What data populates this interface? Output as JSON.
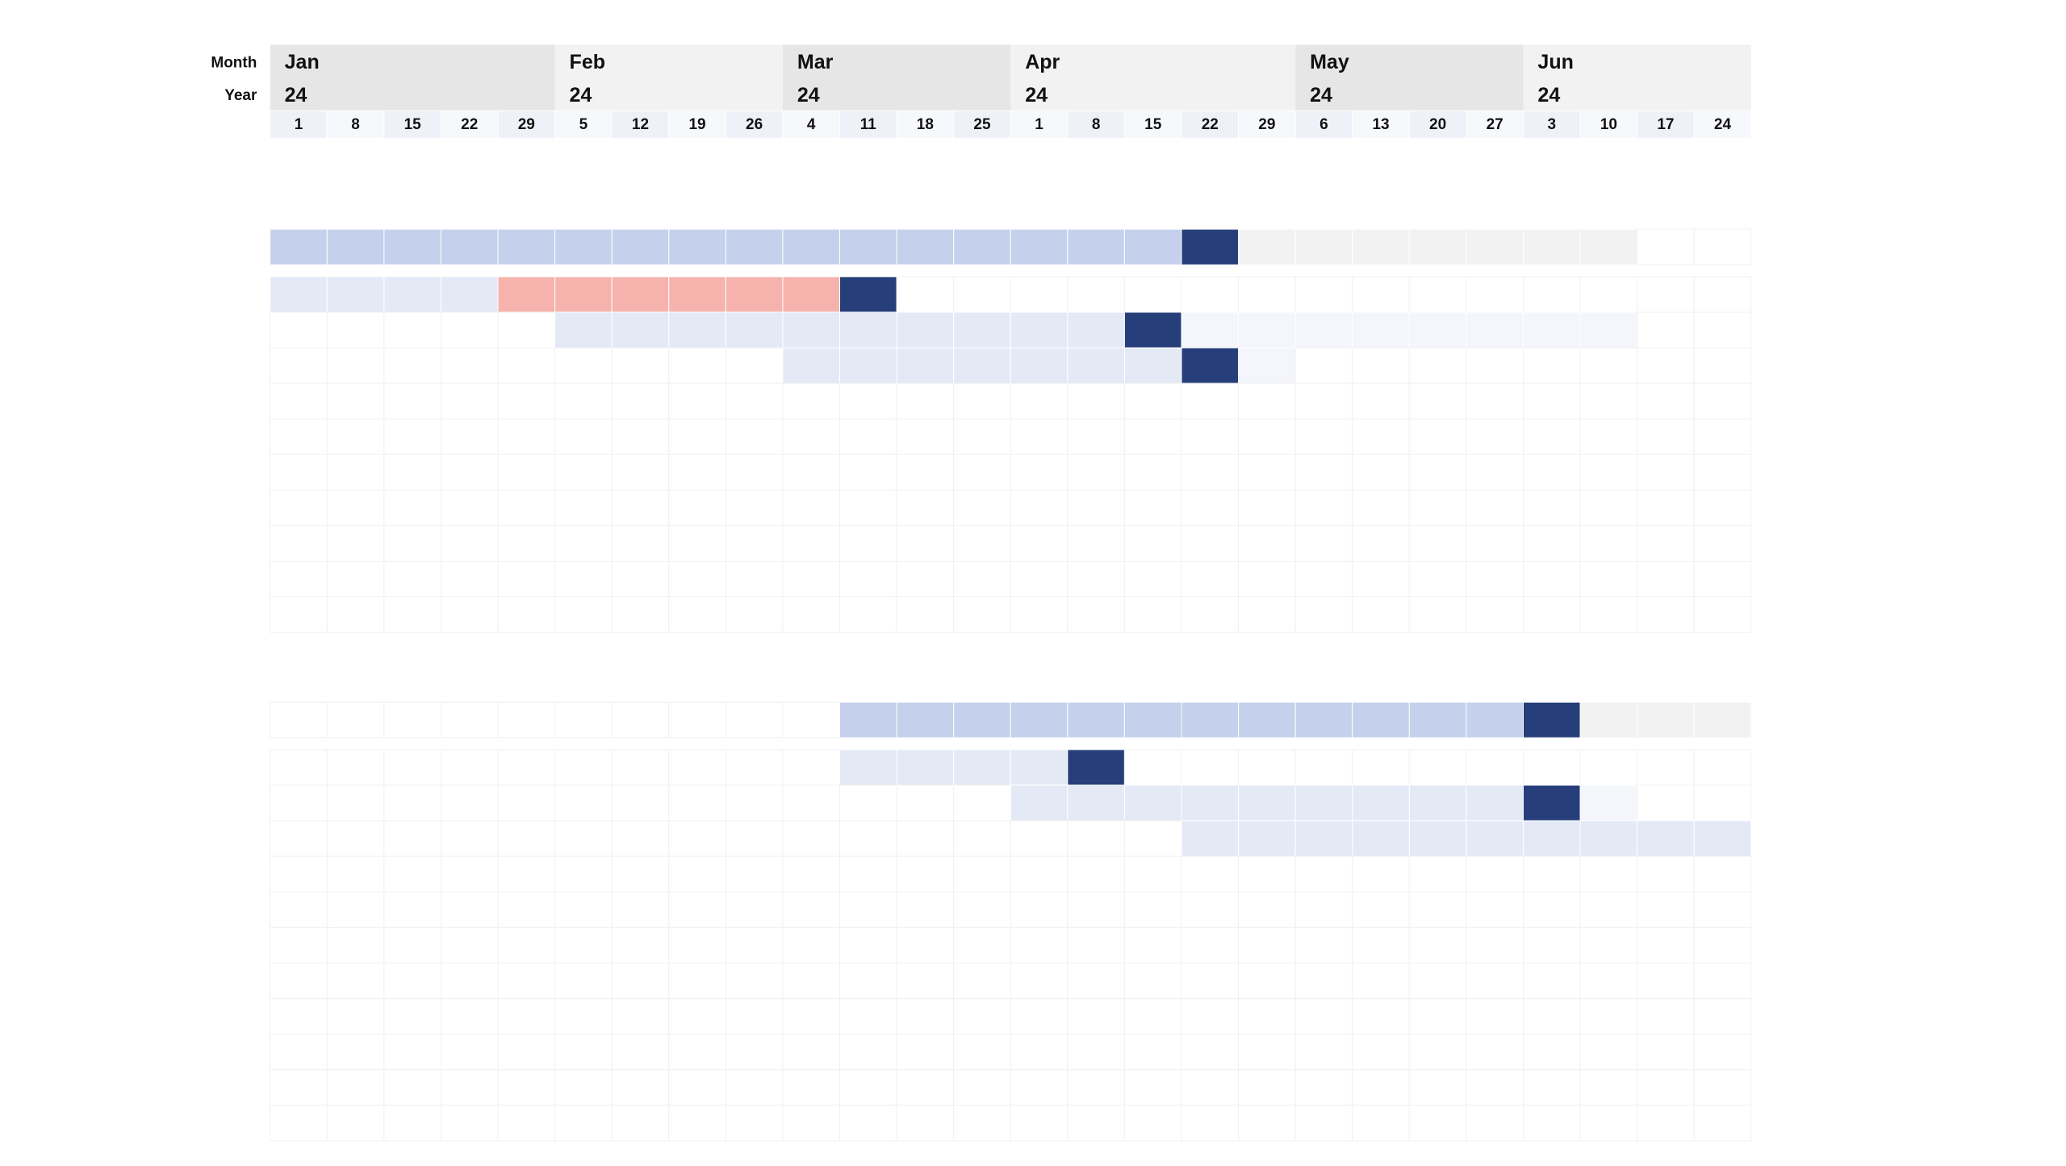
{
  "header": {
    "row_labels": [
      "Month",
      "Year"
    ],
    "months": [
      {
        "name": "Jan",
        "year": "24",
        "weeks": [
          1,
          8,
          15,
          22,
          29
        ]
      },
      {
        "name": "Feb",
        "year": "24",
        "weeks": [
          5,
          12,
          19,
          26
        ]
      },
      {
        "name": "Mar",
        "year": "24",
        "weeks": [
          4,
          11,
          18,
          25
        ]
      },
      {
        "name": "Apr",
        "year": "24",
        "weeks": [
          1,
          8,
          15,
          22,
          29
        ]
      },
      {
        "name": "May",
        "year": "24",
        "weeks": [
          6,
          13,
          20,
          27
        ]
      },
      {
        "name": "Jun",
        "year": "24",
        "weeks": [
          3,
          10,
          17,
          24
        ]
      }
    ]
  }
}
